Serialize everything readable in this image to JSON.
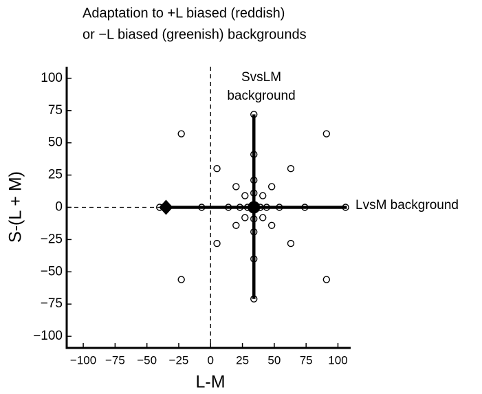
{
  "chart_data": {
    "type": "scatter",
    "title": [
      "Adaptation to +L biased (reddish)",
      "or −L biased (greenish) backgrounds"
    ],
    "x_label": "L-M",
    "y_label": "S-(L + M)",
    "xlim": [
      -113,
      110
    ],
    "ylim": [
      -109,
      109
    ],
    "xticks": [
      {
        "value": -100,
        "label": "−100"
      },
      {
        "value": -75,
        "label": "−75"
      },
      {
        "value": -50,
        "label": "−50"
      },
      {
        "value": -25,
        "label": "−25"
      },
      0,
      25,
      50,
      75,
      100
    ],
    "yticks": [
      {
        "value": -100,
        "label": "−100"
      },
      {
        "value": -75,
        "label": "−75"
      },
      {
        "value": -50,
        "label": "−50"
      },
      {
        "value": -25,
        "label": "−25"
      },
      0,
      25,
      50,
      75,
      100
    ],
    "annotations": [
      [
        "SvsLM",
        "background"
      ],
      [
        "LvsM background"
      ]
    ],
    "lines": [
      {
        "x": [
          -36,
          107
        ],
        "y": [
          0,
          0
        ]
      },
      {
        "x": [
          34,
          34
        ],
        "y": [
          -71,
          72
        ]
      }
    ],
    "tests": {
      "x": [
        34,
        -23,
        91,
        34,
        5,
        63,
        34,
        20,
        48,
        27,
        41,
        34,
        -40,
        -37,
        -7,
        14,
        23,
        29,
        39,
        44,
        54,
        74,
        106,
        27,
        41,
        34,
        20,
        48,
        34,
        5,
        63,
        34,
        -23,
        91,
        34
      ],
      "y": [
        72,
        57,
        57,
        41,
        30,
        30,
        21,
        16,
        16,
        9,
        9,
        11,
        0,
        0,
        0,
        0,
        0,
        0,
        0,
        0,
        0,
        0,
        0,
        -8,
        -8,
        -9,
        -14,
        -14,
        -19,
        -28,
        -28,
        -40,
        -56,
        -56,
        -71
      ]
    },
    "backgrounds": {
      "x": [
        -35,
        34
      ],
      "y": [
        0,
        0
      ]
    },
    "color": "#000000"
  }
}
